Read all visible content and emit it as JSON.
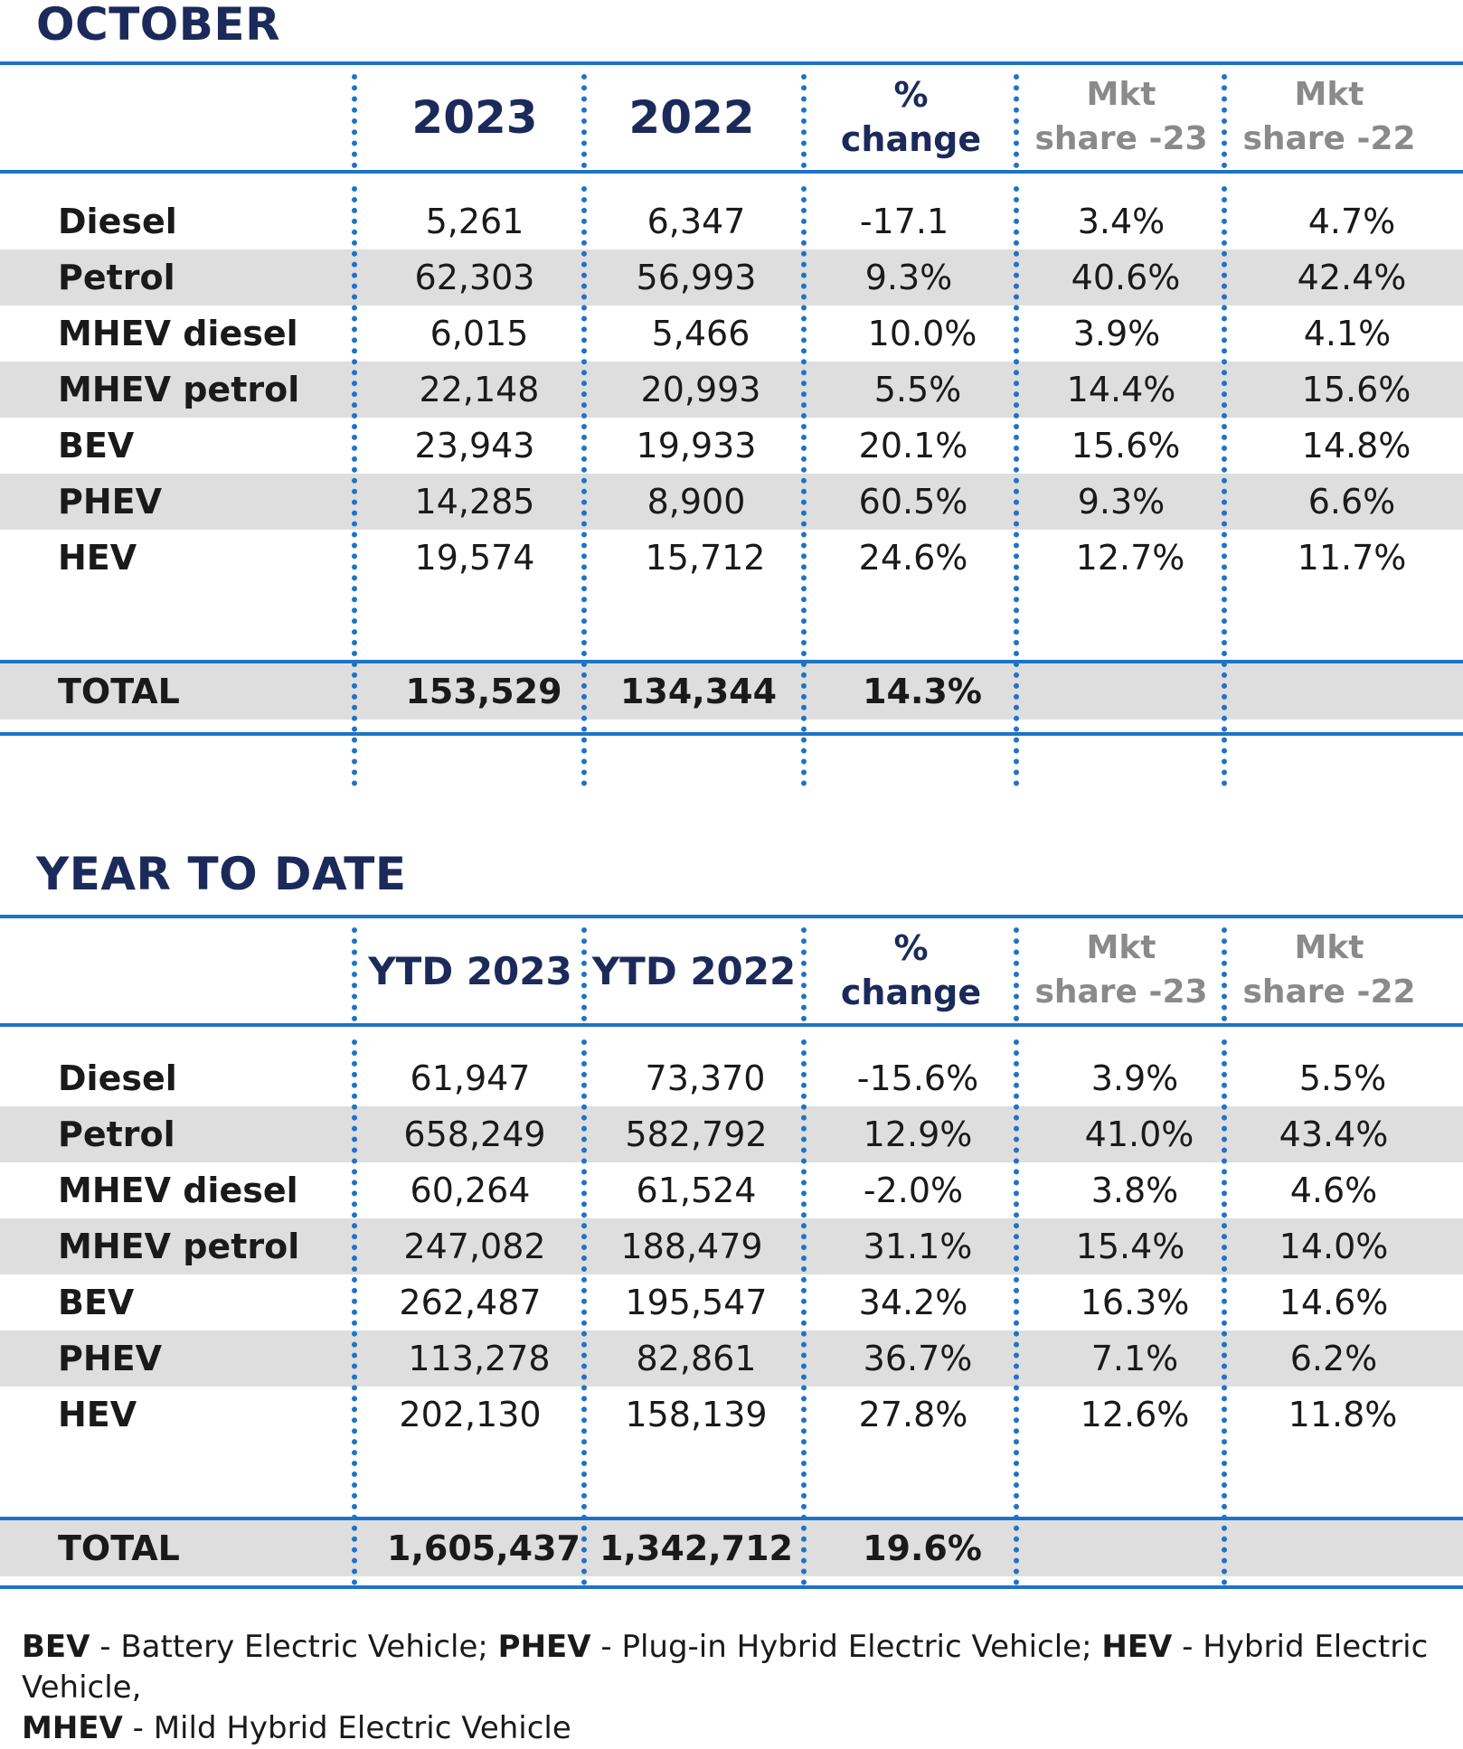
{
  "sections": [
    {
      "title": "OCTOBER",
      "headers": {
        "col1": "2023",
        "col2": "2022",
        "change_line1": "%",
        "change_line2": "change",
        "mkt23_line1": "Mkt",
        "mkt23_line2": "share -23",
        "mkt22_line1": "Mkt",
        "mkt22_line2": "share -22"
      },
      "rows": [
        {
          "label": "Diesel",
          "v1": "5,261",
          "v2": "6,347",
          "change": "-17.1",
          "mkt23": "3.4%",
          "mkt22": "4.7%"
        },
        {
          "label": "Petrol",
          "v1": "62,303",
          "v2": "56,993",
          "change": "9.3%",
          "mkt23": "40.6%",
          "mkt22": "42.4%"
        },
        {
          "label": "MHEV diesel",
          "v1": "6,015",
          "v2": "5,466",
          "change": "10.0%",
          "mkt23": "3.9%",
          "mkt22": "4.1%"
        },
        {
          "label": "MHEV petrol",
          "v1": "22,148",
          "v2": "20,993",
          "change": "5.5%",
          "mkt23": "14.4%",
          "mkt22": "15.6%"
        },
        {
          "label": "BEV",
          "v1": "23,943",
          "v2": "19,933",
          "change": "20.1%",
          "mkt23": "15.6%",
          "mkt22": "14.8%"
        },
        {
          "label": "PHEV",
          "v1": "14,285",
          "v2": "8,900",
          "change": "60.5%",
          "mkt23": "9.3%",
          "mkt22": "6.6%"
        },
        {
          "label": "HEV",
          "v1": "19,574",
          "v2": "15,712",
          "change": "24.6%",
          "mkt23": "12.7%",
          "mkt22": "11.7%"
        }
      ],
      "total": {
        "label": "TOTAL",
        "v1": "153,529",
        "v2": "134,344",
        "change": "14.3%"
      }
    },
    {
      "title": "YEAR TO DATE",
      "headers": {
        "col1": "YTD 2023",
        "col2": "YTD 2022",
        "change_line1": "%",
        "change_line2": "change",
        "mkt23_line1": "Mkt",
        "mkt23_line2": "share -23",
        "mkt22_line1": "Mkt",
        "mkt22_line2": "share -22"
      },
      "rows": [
        {
          "label": "Diesel",
          "v1": "61,947",
          "v2": "73,370",
          "change": "-15.6%",
          "mkt23": "3.9%",
          "mkt22": "5.5%"
        },
        {
          "label": "Petrol",
          "v1": "658,249",
          "v2": "582,792",
          "change": "12.9%",
          "mkt23": "41.0%",
          "mkt22": "43.4%"
        },
        {
          "label": "MHEV diesel",
          "v1": "60,264",
          "v2": "61,524",
          "change": "-2.0%",
          "mkt23": "3.8%",
          "mkt22": "4.6%"
        },
        {
          "label": "MHEV petrol",
          "v1": "247,082",
          "v2": "188,479",
          "change": "31.1%",
          "mkt23": "15.4%",
          "mkt22": "14.0%"
        },
        {
          "label": "BEV",
          "v1": "262,487",
          "v2": "195,547",
          "change": "34.2%",
          "mkt23": "16.3%",
          "mkt22": "14.6%"
        },
        {
          "label": "PHEV",
          "v1": "113,278",
          "v2": "82,861",
          "change": "36.7%",
          "mkt23": "7.1%",
          "mkt22": "6.2%"
        },
        {
          "label": "HEV",
          "v1": "202,130",
          "v2": "158,139",
          "change": "27.8%",
          "mkt23": "12.6%",
          "mkt22": "11.8%"
        }
      ],
      "total": {
        "label": "TOTAL",
        "v1": "1,605,437",
        "v2": "1,342,712",
        "change": "19.6%"
      }
    }
  ],
  "footnote": {
    "bev_term": "BEV",
    "bev_def": " - Battery Electric Vehicle; ",
    "phev_term": "PHEV",
    "phev_def": " - Plug-in Hybrid Electric Vehicle; ",
    "hev_term": "HEV",
    "hev_def": " - Hybrid Electric Vehicle,",
    "mhev_term": "MHEV",
    "mhev_def": " - Mild Hybrid Electric Vehicle"
  },
  "colors": {
    "accent_blue": "#1e73c8",
    "title_navy": "#1b2a5a",
    "shade_gray": "#dedede",
    "mkt_header_gray": "#8a8a8a"
  }
}
